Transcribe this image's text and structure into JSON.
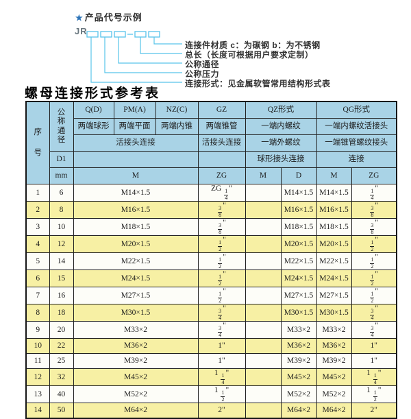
{
  "diagram": {
    "star": "★",
    "title": "产品代号示例",
    "prefix": "JR",
    "labels": [
      "连接件材质  c：为碳钢  b：为不锈钢",
      "总长（长度可根据用户要求定制）",
      "公称通径",
      "公称压力",
      "连接形式：见金属软管常用结构形式表"
    ]
  },
  "table": {
    "title": "螺母连接形式参考表",
    "header": {
      "seq": "序号",
      "nominal_diameter": "公称通径",
      "d1": "D1",
      "mm": "mm",
      "col_q": "Q(D)",
      "col_pm": "PM(A)",
      "col_nz": "NZ(C)",
      "col_gz": "GZ",
      "col_qz": "QZ形式",
      "col_qg": "QG形式",
      "q_desc": "两端球形",
      "pm_desc": "两端平面",
      "nz_desc": "两端内锥",
      "gz_desc": "两端锥管",
      "qz_desc1": "一端内螺纹",
      "qg_desc1": "一端内螺纹活接头",
      "union_conn_left": "活接头连接",
      "union_conn_gz": "活接头连接",
      "qz_desc2": "一端外螺纹",
      "qg_desc2": "一端锥管螺纹接头",
      "qz_conn": "球形接头连接",
      "qg_conn": "连接",
      "m_wide": "M",
      "zg": "ZG",
      "qz_m": "M",
      "qz_d": "D",
      "qg_m": "M",
      "qg_zg": "ZG"
    },
    "rows": [
      [
        "1",
        "6",
        "M14×1.5",
        "ZG 1/4\"",
        "",
        "M14×1.5",
        "M14×1.5",
        "1/4\""
      ],
      [
        "2",
        "8",
        "M16×1.5",
        "3/8\"",
        "",
        "M16×1.5",
        "M16×1.5",
        "3/8\""
      ],
      [
        "3",
        "10",
        "M18×1.5",
        "3/8\"",
        "",
        "M18×1.5",
        "M18×1.5",
        "3/8\""
      ],
      [
        "4",
        "12",
        "M20×1.5",
        "1/2\"",
        "",
        "M20×1.5",
        "M20×1.5",
        "1/2\""
      ],
      [
        "5",
        "14",
        "M22×1.5",
        "1/2\"",
        "",
        "M22×1.5",
        "M22×1.5",
        "1/2\""
      ],
      [
        "6",
        "15",
        "M24×1.5",
        "1/2\"",
        "",
        "M24×1.5",
        "M24×1.5",
        "1/2\""
      ],
      [
        "7",
        "16",
        "M27×1.5",
        "1/2\"",
        "",
        "M27×1.5",
        "M27×1.5",
        "1/2\""
      ],
      [
        "8",
        "18",
        "M30×1.5",
        "3/4\"",
        "",
        "M30×1.5",
        "M30×1.5",
        "3/4\""
      ],
      [
        "9",
        "20",
        "M33×2",
        "3/4\"",
        "",
        "M33×2",
        "M33×2",
        "3/4\""
      ],
      [
        "10",
        "22",
        "M36×2",
        "1\"",
        "",
        "M36×2",
        "M36×2",
        "1\""
      ],
      [
        "11",
        "25",
        "M39×2",
        "1\"",
        "",
        "M39×2",
        "M39×2",
        "1\""
      ],
      [
        "12",
        "32",
        "M45×2",
        "1 1/4\"",
        "",
        "M45×2",
        "M45×2",
        "1 1/4\""
      ],
      [
        "13",
        "40",
        "M52×2",
        "1 1/2\"",
        "",
        "M52×2",
        "M52×2",
        "1 1/2\""
      ],
      [
        "14",
        "50",
        "M64×2",
        "2\"",
        "",
        "M64×2",
        "M64×2",
        "2\""
      ]
    ]
  },
  "colors": {
    "header_bg": "#a9d3e6",
    "alt_row_bg": "#f7f0a4",
    "line_cyan": "#58c4ea",
    "star_blue": "#2d74b8",
    "border": "#1c1c1c"
  }
}
